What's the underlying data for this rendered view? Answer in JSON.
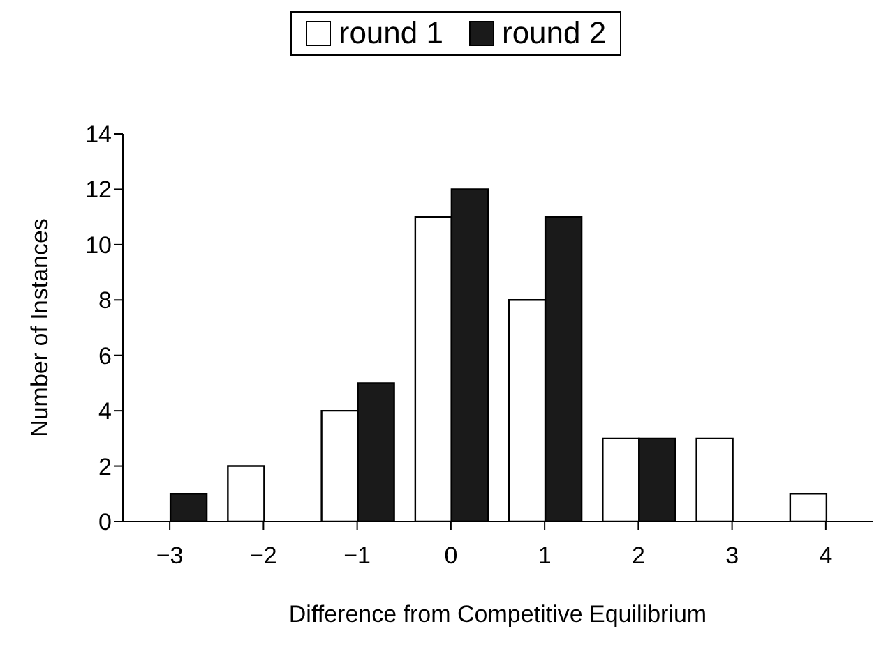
{
  "chart_data": {
    "type": "bar",
    "xlabel": "Difference from Competitive Equilibrium",
    "ylabel": "Number of Instances",
    "categories": [
      "−3",
      "−2",
      "−1",
      "0",
      "1",
      "2",
      "3",
      "4"
    ],
    "series": [
      {
        "name": "round 1",
        "color": "#ffffff",
        "values": [
          0,
          2,
          4,
          11,
          8,
          3,
          3,
          1
        ]
      },
      {
        "name": "round 2",
        "color": "#1a1a1a",
        "values": [
          1,
          0,
          5,
          12,
          11,
          3,
          0,
          0
        ]
      }
    ],
    "ylim": [
      0,
      14
    ],
    "yticks": [
      0,
      2,
      4,
      6,
      8,
      10,
      12,
      14
    ],
    "grid": false,
    "legend": "top"
  }
}
